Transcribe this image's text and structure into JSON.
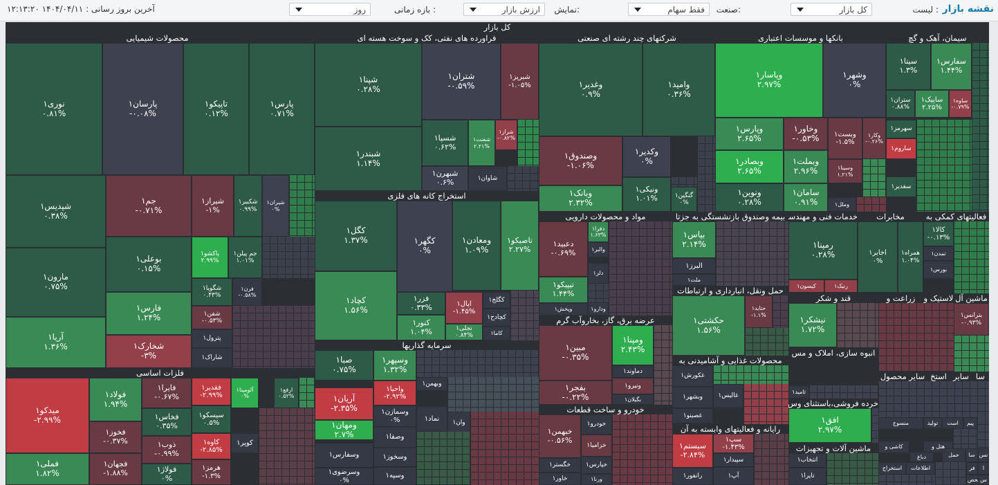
{
  "topbar": {
    "title": "نقشه بازار",
    "list_label": "لیست :",
    "list_value": "کل بازار",
    "industry_label": "صنعت:",
    "industry_value": "فقط سهام",
    "display_label": "نمایش:",
    "display_value": "ارزش بازار",
    "period_label": "بازه زمانی :",
    "period_value": "روز",
    "updated_label": "آخرین بروز رسانی : ۱۴۰۴/۰۴/۱۱ ۱۲:۱۳:۲۰"
  },
  "map": {
    "title": "کل بازار",
    "sectors": {
      "chem": "محصولات شیمیایی",
      "refine": "فراورده های نفتی، کک و سوخت هسته ای",
      "multi": "شرکتهای چند رشته ای صنعتی",
      "banks": "بانکها و موسسات اعتباری",
      "cement": "سیمان، آهک و گچ",
      "metal": "فلزات اساسی",
      "mining": "استخراج کانه های فلزی",
      "invest": "سرمایه گذاریها",
      "pharma": "مواد و محصولات دارویی",
      "insure": "بیمه وصندوق بازنشستگی به جزتا",
      "tech": "خدمات فنی و مهندسی",
      "telecom": "مخابرات",
      "finaux": "فعالیتهای کمکی به",
      "power": "عرضه برق، گاز، بخاروآب گرم",
      "transport": "حمل ونقل، انبارداری و ارتباطات",
      "sugar": "قند و شکر",
      "agri": "زراعت و",
      "rubber": "لاستیک و",
      "office": "ماشین آل",
      "food": "محصولات غذایی و آشامیدنی به",
      "build": "انبوه سازی، املاک و مس",
      "car": "خودرو و ساخت قطعات",
      "other": "سایر محصول",
      "cash": "استخ",
      "misc": "سایر",
      "sa": "سا",
      "retail": "خرده فروشی،باستثنای وس",
      "computer": "رایانه و فعالیتهای وابسته به آن",
      "machine": "ماشین آلات و تجهیزات"
    },
    "tiles": [
      {
        "sym": "نوری۱",
        "pct": "۰.۸۱%"
      },
      {
        "sym": "پارسان۱",
        "pct": "-۰.۰۸%"
      },
      {
        "sym": "تاپیکو۱",
        "pct": "۰.۱۲%"
      },
      {
        "sym": "پارس۱",
        "pct": "۰.۷۱%"
      },
      {
        "sym": "شپدیس۱",
        "pct": "۰.۳۸%"
      },
      {
        "sym": "جم۱",
        "pct": "-۰.۷۱%"
      },
      {
        "sym": "شیراز۱",
        "pct": "-۱%"
      },
      {
        "sym": "شکبیر۱",
        "pct": "۰.۹۹%"
      },
      {
        "sym": "شیران۱",
        "pct": "۰%"
      },
      {
        "sym": "پاکشو۱",
        "pct": "۲.۹۹%"
      },
      {
        "sym": "جم پیلن۱",
        "pct": "۱.۰۱%"
      },
      {
        "sym": "بوعلی۱",
        "pct": "۰.۱۵%"
      },
      {
        "sym": "مارون۱",
        "pct": "۰.۷۵%"
      },
      {
        "sym": "شگویا۱",
        "pct": "۰.۴۳%"
      },
      {
        "sym": "فرن۱",
        "pct": "-۰.۵۸%"
      },
      {
        "sym": "فارس۱",
        "pct": "۱.۲۴%"
      },
      {
        "sym": "شفن۱",
        "pct": "-۰.۵۳%"
      },
      {
        "sym": "آریا۱",
        "pct": "۱.۳۶%"
      },
      {
        "sym": "پترول۱",
        "pct": ""
      },
      {
        "sym": "شخارک۱",
        "pct": "-۳%"
      },
      {
        "sym": "شاراک۱",
        "pct": ""
      },
      {
        "sym": "شپنا۱",
        "pct": "۰.۲۸%"
      },
      {
        "sym": "شتران۱",
        "pct": "-۰.۵۹%"
      },
      {
        "sym": "شبریز۱",
        "pct": "-۱.۰۵%"
      },
      {
        "sym": "شبندر۱",
        "pct": "۱.۱۴%"
      },
      {
        "sym": "شسپا۱",
        "pct": "۰.۶۲%"
      },
      {
        "sym": "شفنت۱",
        "pct": "۲.۲۱%"
      },
      {
        "sym": "شراز۱",
        "pct": "-۰.۸۲%"
      },
      {
        "sym": "شبهرن۱",
        "pct": "۰.۶%"
      },
      {
        "sym": "شاوان۱",
        "pct": ""
      },
      {
        "sym": "کگل۱",
        "pct": "۱.۳۷%"
      },
      {
        "sym": "کگهر۱",
        "pct": "۰%"
      },
      {
        "sym": "ومعادن۱",
        "pct": "۱.۰۹%"
      },
      {
        "sym": "تاصیکو۱",
        "pct": "۲.۲۷%"
      },
      {
        "sym": "کچاد۱",
        "pct": "۱.۵۶%"
      },
      {
        "sym": "فزر۱",
        "pct": "۰.۳۳%"
      },
      {
        "sym": "اپال۱",
        "pct": "-۱.۴۵%"
      },
      {
        "sym": "کگلج۱",
        "pct": ""
      },
      {
        "sym": "کچادح۱",
        "pct": ""
      },
      {
        "sym": "کنور۱",
        "pct": "۱.۰۴%"
      },
      {
        "sym": "تجلی۱",
        "pct": "۰.۸۴%"
      },
      {
        "sym": "کاما۱",
        "pct": ""
      },
      {
        "sym": "وغدیر۱",
        "pct": "۰.۹%"
      },
      {
        "sym": "وامید۱",
        "pct": "۰.۳۶%"
      },
      {
        "sym": "وصندوق۱",
        "pct": "-۱.۰۶%"
      },
      {
        "sym": "وکدیر۱",
        "pct": "۰%"
      },
      {
        "sym": "وبانک۱",
        "pct": "۲.۳۲%"
      },
      {
        "sym": "ونیکی۱",
        "pct": "۱.۰۱%"
      },
      {
        "sym": "گنگین۱",
        "pct": "۰%"
      },
      {
        "sym": "وپاسار۱",
        "pct": "۲.۹۷%"
      },
      {
        "sym": "وشهر۱",
        "pct": "۰%"
      },
      {
        "sym": "وپارس۱",
        "pct": "۲.۶۵%"
      },
      {
        "sym": "وخاور۱",
        "pct": "-۰.۵۳%"
      },
      {
        "sym": "وبست۱",
        "pct": "-۱.۵%"
      },
      {
        "sym": "وکار۱",
        "pct": "-۰.۲۶%"
      },
      {
        "sym": "وبصادر۱",
        "pct": "۲.۶۵%"
      },
      {
        "sym": "وبملت۱",
        "pct": "۲.۹۶%"
      },
      {
        "sym": "وسینا۱",
        "pct": "۱.۲۱%"
      },
      {
        "sym": "ونوین۱",
        "pct": "۰.۲۸%"
      },
      {
        "sym": "سامان۱",
        "pct": "۰.۹۱%"
      },
      {
        "sym": "وملل۱",
        "pct": ""
      },
      {
        "sym": "سیتا۱",
        "pct": "۱.۳%"
      },
      {
        "sym": "سفارس۱",
        "pct": "۱.۴۴%"
      },
      {
        "sym": "ستران۱",
        "pct": "۰.۸۸%"
      },
      {
        "sym": "ساپیک۱",
        "pct": "۲.۲۵%"
      },
      {
        "sym": "ساوه۱",
        "pct": "-۰.۷۹%"
      },
      {
        "sym": "سهرمز۱",
        "pct": ""
      },
      {
        "sym": "ساروم۱",
        "pct": ""
      },
      {
        "sym": "سغدیر۱",
        "pct": ""
      },
      {
        "sym": "میدکو۱",
        "pct": "-۲.۹۹%"
      },
      {
        "sym": "فولاد۱",
        "pct": "۱.۹۴%"
      },
      {
        "sym": "فایرا۱",
        "pct": "-۰.۶۷%"
      },
      {
        "sym": "فقدیر۱",
        "pct": "-۲.۹۹%"
      },
      {
        "sym": "آلومینا۱",
        "pct": "۰%"
      },
      {
        "sym": "ارفع۱",
        "pct": "۰.۵۲%"
      },
      {
        "sym": "فخوز۱",
        "pct": "-۰.۳۷%"
      },
      {
        "sym": "فخاس۱",
        "pct": "۰.۳۵%"
      },
      {
        "sym": "سیسکو۱",
        "pct": "۰.۵%"
      },
      {
        "sym": "کویر۱",
        "pct": ""
      },
      {
        "sym": "ذوب۱",
        "pct": "-۰.۹۹%"
      },
      {
        "sym": "کاوه۱",
        "pct": "-۲.۸۵%"
      },
      {
        "sym": "فملی۱",
        "pct": "۱.۸۲%"
      },
      {
        "sym": "فجهان۱",
        "pct": "-۱.۸۸%"
      },
      {
        "sym": "فولاژ۱",
        "pct": "۰%"
      },
      {
        "sym": "هرمز۱",
        "pct": "-۱.۳%"
      },
      {
        "sym": "صبا۱",
        "pct": "۰.۷۵%"
      },
      {
        "sym": "وسپهر۱",
        "pct": "۱.۳۲%"
      },
      {
        "sym": "آریان۱",
        "pct": "-۲.۳۵%"
      },
      {
        "sym": "واحیا۱",
        "pct": "-۲.۹۲%"
      },
      {
        "sym": "وبهمن۱",
        "pct": ""
      },
      {
        "sym": "وسمازن۱",
        "pct": "۰%"
      },
      {
        "sym": "نماد۱",
        "pct": ""
      },
      {
        "sym": "وان۱",
        "pct": ""
      },
      {
        "sym": "ومهان۱",
        "pct": "۲.۷%"
      },
      {
        "sym": "وصفا۱",
        "pct": ""
      },
      {
        "sym": "وسفارس۱",
        "pct": ""
      },
      {
        "sym": "وسخوز۱",
        "pct": ""
      },
      {
        "sym": "وسرضوی۱",
        "pct": "۰%"
      },
      {
        "sym": "وسپه۱",
        "pct": ""
      },
      {
        "sym": "دعبید۱",
        "pct": "-۰.۶۹%"
      },
      {
        "sym": "دفرا۱",
        "pct": "۱.۶۳%"
      },
      {
        "sym": "والبر۱",
        "pct": ""
      },
      {
        "sym": "دلر۱",
        "pct": ""
      },
      {
        "sym": "تیپیکو۱",
        "pct": "۱.۴۴%"
      },
      {
        "sym": "ودارو۱",
        "pct": ""
      },
      {
        "sym": "وپخش۱",
        "pct": ""
      },
      {
        "sym": "بپاس۱",
        "pct": "۲.۱۴%"
      },
      {
        "sym": "البرز۱",
        "pct": ""
      },
      {
        "sym": "ملت۱",
        "pct": ""
      },
      {
        "sym": "رمپنا۱",
        "pct": "۰.۲۸%"
      },
      {
        "sym": "کیسون۱",
        "pct": ""
      },
      {
        "sym": "رنیک۱",
        "pct": ""
      },
      {
        "sym": "اخابر۱",
        "pct": "۰%"
      },
      {
        "sym": "همراه۱",
        "pct": "۱.۰۴%"
      },
      {
        "sym": "کالا۱",
        "pct": "-۰.۱۳%"
      },
      {
        "sym": "تمدن۱",
        "pct": ""
      },
      {
        "sym": "بورس۱",
        "pct": ""
      },
      {
        "sym": "مبین۱",
        "pct": "-۰.۳۵%"
      },
      {
        "sym": "ومپنا۱",
        "pct": "۲.۴۳%"
      },
      {
        "sym": "دماوند۱",
        "pct": ""
      },
      {
        "sym": "ونیرو۱",
        "pct": ""
      },
      {
        "sym": "بفجر۱",
        "pct": "-۰.۲۲%"
      },
      {
        "sym": "بگیلان۱",
        "pct": ""
      },
      {
        "sym": "حکشتی۱",
        "pct": "۱.۵۶%"
      },
      {
        "sym": "حتاید۱",
        "pct": "-۱.۱%"
      },
      {
        "sym": "نیشکر۱",
        "pct": "۱.۷۲%"
      },
      {
        "sym": "بترانس۱",
        "pct": "-۰.۹۳%"
      },
      {
        "sym": "غکورش۱",
        "pct": ""
      },
      {
        "sym": "وبشهر۱",
        "pct": ""
      },
      {
        "sym": "غالیس۱",
        "pct": ""
      },
      {
        "sym": "غصینو۱",
        "pct": ""
      },
      {
        "sym": "ثامید۱",
        "pct": ""
      },
      {
        "sym": "افق۱",
        "pct": "۲.۹۷%"
      },
      {
        "sym": "خبهمن۱",
        "pct": "-۰.۵۶%"
      },
      {
        "sym": "خودرو۱",
        "pct": ""
      },
      {
        "sym": "خزامیا۱",
        "pct": ""
      },
      {
        "sym": "خگستر۱",
        "pct": ""
      },
      {
        "sym": "خپارس۱",
        "pct": ""
      },
      {
        "sym": "خاور۱",
        "pct": ""
      },
      {
        "sym": "ورنا۱",
        "pct": ""
      },
      {
        "sym": "سیستم۱",
        "pct": "-۲.۸۴%"
      },
      {
        "sym": "سپ۱",
        "pct": "-۱.۴۳%"
      },
      {
        "sym": "سپیدار۱",
        "pct": ""
      },
      {
        "sym": "رانفور۱",
        "pct": ""
      },
      {
        "sym": "آپ۱",
        "pct": ""
      },
      {
        "sym": "انتخاب۱",
        "pct": ""
      },
      {
        "sym": "تاپرا۱",
        "pct": ""
      },
      {
        "sym": "منسوج",
        "pct": ""
      },
      {
        "sym": "کاشی و",
        "pct": ""
      },
      {
        "sym": "هتل و",
        "pct": ""
      },
      {
        "sym": "اطلاعات",
        "pct": ""
      },
      {
        "sym": "استخراج",
        "pct": ""
      },
      {
        "sym": "دباغ",
        "pct": ""
      },
      {
        "sym": "حمل",
        "pct": ""
      },
      {
        "sym": "پیم",
        "pct": ""
      },
      {
        "sym": "است",
        "pct": ""
      },
      {
        "sym": "تولید",
        "pct": ""
      },
      {
        "sym": "محص",
        "pct": ""
      },
      {
        "sym": "سا",
        "pct": ""
      },
      {
        "sym": "نس",
        "pct": ""
      },
      {
        "sym": "فر",
        "pct": ""
      },
      {
        "sym": "س",
        "pct": ""
      },
      {
        "sym": "ا",
        "pct": ""
      }
    ]
  }
}
